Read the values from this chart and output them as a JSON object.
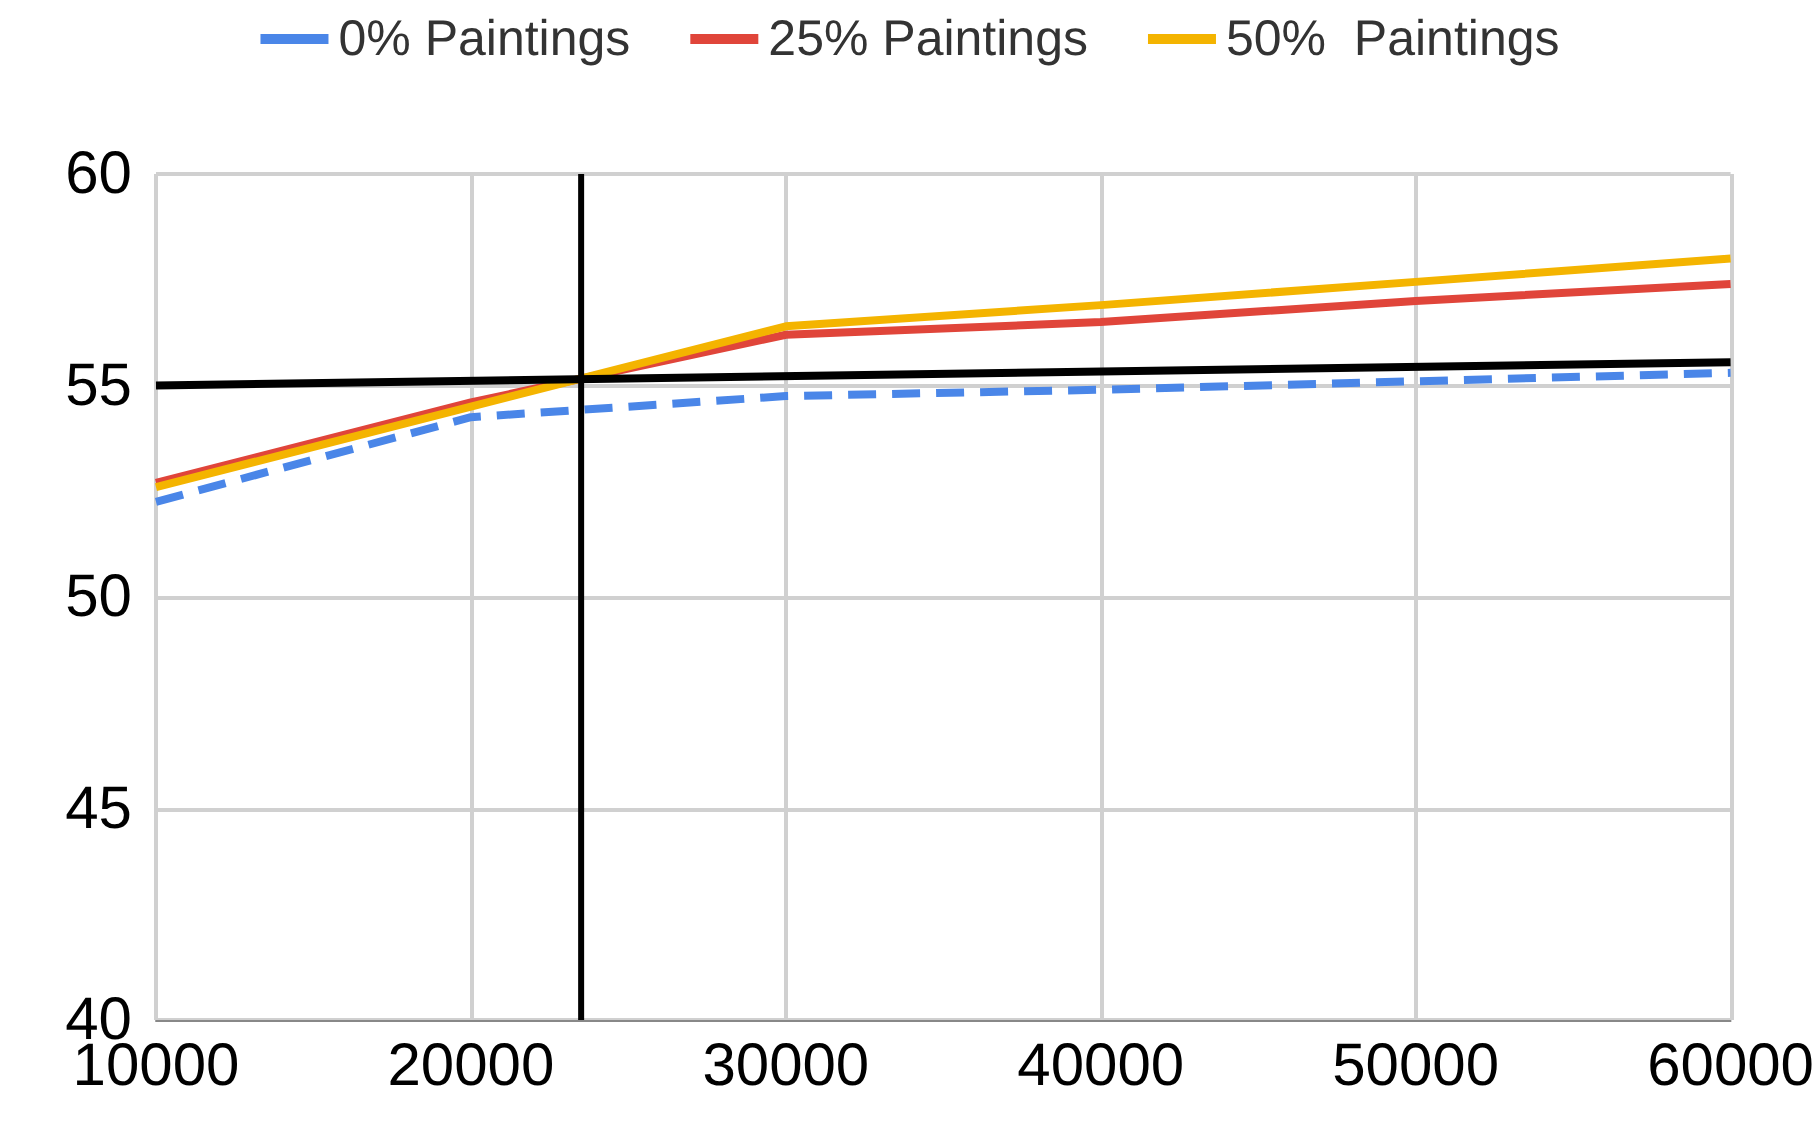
{
  "chart_data": {
    "type": "line",
    "x": [
      10000,
      20000,
      30000,
      40000,
      50000,
      60000
    ],
    "series": [
      {
        "name": "0% Paintings",
        "color": "#4a86e8",
        "line_style": "dashed",
        "values": [
          52.25,
          54.25,
          54.75,
          54.9,
          55.1,
          55.3
        ]
      },
      {
        "name": "25% Paintings",
        "color": "#e0453a",
        "values": [
          52.7,
          54.6,
          56.2,
          56.5,
          57.0,
          57.4
        ]
      },
      {
        "name": "50%  Paintings",
        "color": "#f4b400",
        "values": [
          52.6,
          54.5,
          56.4,
          56.9,
          57.45,
          58.0
        ]
      },
      {
        "color": "#000000",
        "x": [
          10000,
          60000
        ],
        "values": [
          55.0,
          55.55
        ]
      }
    ],
    "ref_lines": [
      {
        "axis": "x",
        "value": 23500,
        "color": "#000000"
      }
    ],
    "xlim": [
      10000,
      60000
    ],
    "xticks": [
      10000,
      20000,
      30000,
      40000,
      50000,
      60000
    ],
    "ylim": [
      40,
      60
    ],
    "yticks": [
      40,
      45,
      50,
      55,
      60
    ],
    "grid": true,
    "legend": "top",
    "marker": "none",
    "line_style": "solid"
  }
}
